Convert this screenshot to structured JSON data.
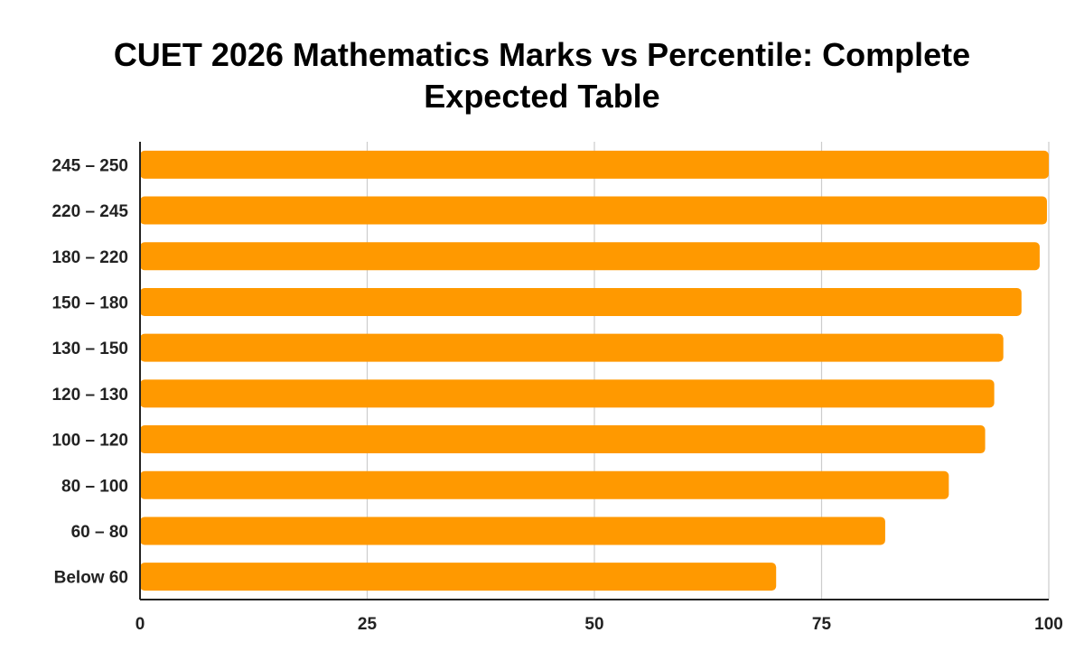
{
  "chart_data": {
    "type": "bar",
    "orientation": "horizontal",
    "title": "CUET 2026 Mathematics Marks vs Percentile: Complete Expected Table",
    "xlabel": "",
    "ylabel": "",
    "categories": [
      "245 – 250",
      "220 – 245",
      "180 – 220",
      "150 – 180",
      "130 – 150",
      "120 – 130",
      "100 – 120",
      "80 – 100",
      "60 – 80",
      "Below 60"
    ],
    "values": [
      100,
      99.8,
      99,
      97,
      95,
      94,
      93,
      89,
      82,
      70
    ],
    "xlim": [
      0,
      100
    ],
    "xticks": [
      "0",
      "25",
      "50",
      "75",
      "100"
    ],
    "grid": "vertical",
    "legend": "none",
    "bar_color": "#ff9900"
  }
}
